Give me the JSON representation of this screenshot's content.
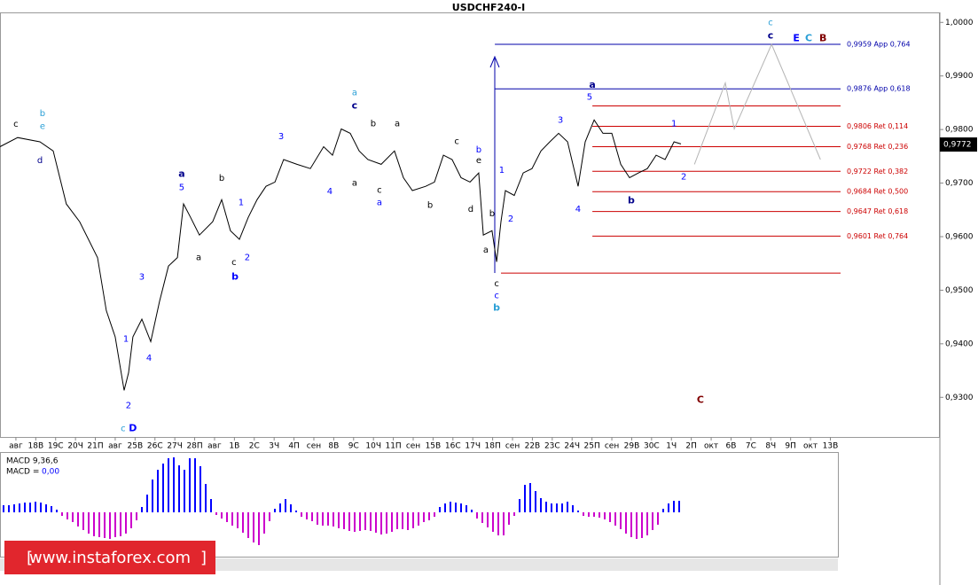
{
  "chart_data": [
    {
      "type": "line",
      "title": "USDCHF240-I",
      "categories": [
        "авг",
        "18В",
        "19С",
        "20Ч",
        "21П",
        "авг",
        "25В",
        "26С",
        "27Ч",
        "28П",
        "авг",
        "1В",
        "2С",
        "3Ч",
        "4П",
        "сен",
        "8В",
        "9С",
        "10Ч",
        "11П",
        "сен",
        "15В",
        "16С",
        "17Ч",
        "18П",
        "сен",
        "22В",
        "23С",
        "24Ч",
        "25П",
        "сен",
        "29В",
        "30С",
        "1Ч",
        "2П",
        "окт",
        "6В",
        "7С",
        "8Ч",
        "9П",
        "окт",
        "13В"
      ],
      "xlim": [
        -0.8,
        41.38
      ],
      "ylim": [
        0.9226,
        1.0017
      ],
      "yticks": [
        {
          "value": 0.93,
          "label": "0,9300"
        },
        {
          "value": 0.94,
          "label": "0,9400"
        },
        {
          "value": 0.95,
          "label": "0,9500"
        },
        {
          "value": 0.96,
          "label": "0,9600"
        },
        {
          "value": 0.97,
          "label": "0,9700"
        },
        {
          "value": 0.98,
          "label": "0,9800"
        },
        {
          "value": 0.99,
          "label": "0,9900"
        },
        {
          "value": 1.0,
          "label": "1,0000"
        }
      ],
      "last_price": {
        "value": 0.9772,
        "label": "0,9772"
      },
      "series": [
        {
          "color": "#000000",
          "x": [
            -0.8,
            0.09,
            1.21,
            1.88,
            2.54,
            3.21,
            4.11,
            4.55,
            5.0,
            5.45,
            5.67,
            5.89,
            6.34,
            6.79,
            7.23,
            7.68,
            8.13,
            8.44,
            8.79,
            9.24,
            9.91,
            10.36,
            10.8,
            11.25,
            11.7,
            12.14,
            12.59,
            13.04,
            13.48,
            14.15,
            14.82,
            15.49,
            15.94,
            16.38,
            16.83,
            17.28,
            17.72,
            18.39,
            19.06,
            19.51,
            19.96,
            20.63,
            21.07,
            21.52,
            21.96,
            22.41,
            22.86,
            23.3,
            23.53,
            23.97,
            24.2,
            24.42,
            24.64,
            25.09,
            25.54,
            25.98,
            26.43,
            26.88,
            27.32,
            27.77,
            28.3,
            28.66,
            29.11,
            29.55,
            30.0,
            30.45,
            30.89,
            31.34,
            31.79,
            32.23,
            32.68,
            33.13,
            33.48
          ],
          "values": [
            0.9768,
            0.9785,
            0.9777,
            0.976,
            0.9661,
            0.9628,
            0.9561,
            0.9462,
            0.9413,
            0.9313,
            0.9346,
            0.9413,
            0.9446,
            0.9404,
            0.9479,
            0.9545,
            0.9561,
            0.9661,
            0.9636,
            0.9603,
            0.9628,
            0.9669,
            0.9611,
            0.9595,
            0.9636,
            0.9669,
            0.9694,
            0.9702,
            0.9744,
            0.9735,
            0.9727,
            0.9768,
            0.9752,
            0.9801,
            0.9793,
            0.976,
            0.9744,
            0.9735,
            0.976,
            0.971,
            0.9686,
            0.9694,
            0.9702,
            0.9752,
            0.9744,
            0.971,
            0.9702,
            0.9719,
            0.9603,
            0.9611,
            0.9553,
            0.9628,
            0.9686,
            0.9677,
            0.9719,
            0.9727,
            0.976,
            0.9777,
            0.9793,
            0.9777,
            0.9694,
            0.9777,
            0.9818,
            0.9793,
            0.9793,
            0.9735,
            0.971,
            0.9719,
            0.9727,
            0.9752,
            0.9744,
            0.9777,
            0.9773
          ]
        },
        {
          "color": "#b4b4b4",
          "x": [
            34.16,
            35.71,
            36.16,
            38.04,
            40.5
          ],
          "values": [
            0.9735,
            0.9887,
            0.9801,
            0.9959,
            0.9744
          ]
        }
      ],
      "levels": [
        {
          "value": 0.9959,
          "label": "0,9959 App 0,764",
          "color": "#0000aa",
          "x_start": 24.11
        },
        {
          "value": 0.9876,
          "label": "0,9876 App 0,618",
          "color": "#0000aa",
          "x_start": 24.11
        },
        {
          "value": 0.9844,
          "color": "#cc0000",
          "x_start": 29.02
        },
        {
          "value": 0.9806,
          "label": "0,9806 Ret 0,114",
          "color": "#cc0000",
          "x_start": 29.02
        },
        {
          "value": 0.9768,
          "label": "0,9768 Ret 0,236",
          "color": "#cc0000",
          "x_start": 29.02
        },
        {
          "value": 0.9722,
          "label": "0,9722 Ret 0,382",
          "color": "#cc0000",
          "x_start": 29.02
        },
        {
          "value": 0.9684,
          "label": "0,9684 Ret 0,500",
          "color": "#cc0000",
          "x_start": 29.02
        },
        {
          "value": 0.9647,
          "label": "0,9647 Ret 0,618",
          "color": "#cc0000",
          "x_start": 29.02
        },
        {
          "value": 0.9601,
          "label": "0,9601 Ret 0,764",
          "color": "#cc0000",
          "x_start": 29.02
        },
        {
          "value": 0.9532,
          "color": "#cc0000",
          "x_start": 24.42
        }
      ],
      "annotations": [
        {
          "text": "c",
          "x": 0,
          "y": 0.981,
          "color": "#000000"
        },
        {
          "text": "b",
          "x": 1.34,
          "y": 0.983,
          "color": "#2a9fd6"
        },
        {
          "text": "e",
          "x": 1.34,
          "y": 0.9806,
          "color": "#2a9fd6"
        },
        {
          "text": "d",
          "x": 1.21,
          "y": 0.9742,
          "color": "#00008b"
        },
        {
          "text": "a",
          "x": 8.35,
          "y": 0.9717,
          "color": "#00008b",
          "bold": true
        },
        {
          "text": "5",
          "x": 8.35,
          "y": 0.9692,
          "color": "#0000ff"
        },
        {
          "text": "b",
          "x": 10.36,
          "y": 0.9709,
          "color": "#000000"
        },
        {
          "text": "a",
          "x": 9.2,
          "y": 0.9561,
          "color": "#000000"
        },
        {
          "text": "1",
          "x": 11.34,
          "y": 0.9664,
          "color": "#0000ff"
        },
        {
          "text": "c",
          "x": 10.98,
          "y": 0.9552,
          "color": "#000000"
        },
        {
          "text": "2",
          "x": 11.65,
          "y": 0.9561,
          "color": "#0000ff"
        },
        {
          "text": "b",
          "x": 11.03,
          "y": 0.9525,
          "color": "#0000ff",
          "bold": true
        },
        {
          "text": "3",
          "x": 6.34,
          "y": 0.9525,
          "color": "#0000ff"
        },
        {
          "text": "1",
          "x": 5.54,
          "y": 0.9409,
          "color": "#0000ff"
        },
        {
          "text": "4",
          "x": 6.7,
          "y": 0.9373,
          "color": "#0000ff"
        },
        {
          "text": "2",
          "x": 5.67,
          "y": 0.9285,
          "color": "#0000ff"
        },
        {
          "text": "c",
          "x": 5.4,
          "y": 0.9242,
          "color": "#2a9fd6"
        },
        {
          "text": "D",
          "x": 5.89,
          "y": 0.9242,
          "color": "#0000ff",
          "bold": true
        },
        {
          "text": "3",
          "x": 13.35,
          "y": 0.9787,
          "color": "#0000ff"
        },
        {
          "text": "4",
          "x": 15.8,
          "y": 0.9684,
          "color": "#0000ff"
        },
        {
          "text": "a",
          "x": 17.05,
          "y": 0.9869,
          "color": "#2a9fd6"
        },
        {
          "text": "c",
          "x": 17.05,
          "y": 0.9844,
          "color": "#00008b",
          "bold": true
        },
        {
          "text": "a",
          "x": 17.05,
          "y": 0.97,
          "color": "#000000"
        },
        {
          "text": "b",
          "x": 17.99,
          "y": 0.9811,
          "color": "#000000"
        },
        {
          "text": "a",
          "x": 19.2,
          "y": 0.9811,
          "color": "#000000"
        },
        {
          "text": "c",
          "x": 18.3,
          "y": 0.9687,
          "color": "#000000"
        },
        {
          "text": "a",
          "x": 18.3,
          "y": 0.9664,
          "color": "#0000ff"
        },
        {
          "text": "b",
          "x": 20.85,
          "y": 0.9659,
          "color": "#000000"
        },
        {
          "text": "c",
          "x": 22.19,
          "y": 0.9778,
          "color": "#000000"
        },
        {
          "text": "b",
          "x": 23.3,
          "y": 0.9762,
          "color": "#0000ff"
        },
        {
          "text": "e",
          "x": 23.3,
          "y": 0.9742,
          "color": "#000000"
        },
        {
          "text": "d",
          "x": 22.9,
          "y": 0.9651,
          "color": "#000000"
        },
        {
          "text": "1",
          "x": 24.46,
          "y": 0.9724,
          "color": "#0000ff"
        },
        {
          "text": "b",
          "x": 23.97,
          "y": 0.9643,
          "color": "#000000"
        },
        {
          "text": "2",
          "x": 24.91,
          "y": 0.9633,
          "color": "#0000ff"
        },
        {
          "text": "a",
          "x": 23.66,
          "y": 0.9575,
          "color": "#000000"
        },
        {
          "text": "c",
          "x": 24.2,
          "y": 0.9512,
          "color": "#000000"
        },
        {
          "text": "c",
          "x": 24.2,
          "y": 0.949,
          "color": "#0000ff"
        },
        {
          "text": "b",
          "x": 24.2,
          "y": 0.9467,
          "color": "#2a9fd6",
          "bold": true
        },
        {
          "text": "3",
          "x": 27.41,
          "y": 0.9818,
          "color": "#0000ff"
        },
        {
          "text": "4",
          "x": 28.3,
          "y": 0.9651,
          "color": "#0000ff"
        },
        {
          "text": "a",
          "x": 29.02,
          "y": 0.9883,
          "color": "#00008b",
          "bold": true
        },
        {
          "text": "5",
          "x": 28.88,
          "y": 0.9861,
          "color": "#0000ff"
        },
        {
          "text": "b",
          "x": 30.98,
          "y": 0.9667,
          "color": "#00008b",
          "bold": true
        },
        {
          "text": "1",
          "x": 33.13,
          "y": 0.9811,
          "color": "#0000ff"
        },
        {
          "text": "2",
          "x": 33.62,
          "y": 0.9712,
          "color": "#0000ff"
        },
        {
          "text": "c",
          "x": 37.99,
          "y": 1.0,
          "color": "#2a9fd6"
        },
        {
          "text": "c",
          "x": 37.99,
          "y": 0.9975,
          "color": "#00008b",
          "bold": true
        },
        {
          "text": "E",
          "x": 39.29,
          "y": 0.997,
          "color": "#0000ff",
          "bold": true
        },
        {
          "text": "C",
          "x": 39.91,
          "y": 0.997,
          "color": "#2a9fd6",
          "bold": true
        },
        {
          "text": "B",
          "x": 40.63,
          "y": 0.997,
          "color": "#800000",
          "bold": true
        },
        {
          "text": "C",
          "x": 34.46,
          "y": 0.9295,
          "color": "#800000",
          "bold": true
        }
      ]
    },
    {
      "type": "bar",
      "label": "MACD 9,36,6",
      "value_prefix": "MACD =",
      "value_text": "0,00",
      "ylim": [
        -0.0067,
        0.0065
      ],
      "color": "#0000ff",
      "negative_color": "#cc00cc",
      "values": [
        0.0008,
        0.0008,
        0.0009,
        0.001,
        0.0011,
        0.0011,
        0.0012,
        0.0011,
        0.0009,
        0.0007,
        0.0003,
        -0.0004,
        -0.0008,
        -0.0011,
        -0.0016,
        -0.002,
        -0.0024,
        -0.0027,
        -0.0028,
        -0.0029,
        -0.003,
        -0.0028,
        -0.0027,
        -0.0024,
        -0.0018,
        -0.0009,
        0.0006,
        0.002,
        0.0037,
        0.0048,
        0.0055,
        0.0061,
        0.0062,
        0.0053,
        0.0048,
        0.0061,
        0.0061,
        0.0052,
        0.0032,
        0.0015,
        -0.0003,
        -0.0007,
        -0.0011,
        -0.0015,
        -0.0018,
        -0.0023,
        -0.0029,
        -0.0034,
        -0.0037,
        -0.0024,
        -0.001,
        0.0004,
        0.001,
        0.0015,
        0.0009,
        0.0002,
        -0.0005,
        -0.0008,
        -0.001,
        -0.0014,
        -0.0015,
        -0.0015,
        -0.0016,
        -0.0018,
        -0.0019,
        -0.0021,
        -0.0022,
        -0.0021,
        -0.002,
        -0.0021,
        -0.0023,
        -0.0025,
        -0.0024,
        -0.0022,
        -0.0019,
        -0.0019,
        -0.002,
        -0.0018,
        -0.0015,
        -0.0011,
        -0.0009,
        -0.0005,
        0.0006,
        0.001,
        0.0012,
        0.0011,
        0.001,
        0.0008,
        0.0003,
        -0.0007,
        -0.0012,
        -0.0017,
        -0.0022,
        -0.0026,
        -0.0026,
        -0.0014,
        -0.0004,
        0.0015,
        0.0031,
        0.0033,
        0.0024,
        0.0016,
        0.0012,
        0.001,
        0.001,
        0.001,
        0.0012,
        0.0008,
        0.0002,
        -0.0004,
        -0.0005,
        -0.0005,
        -0.0006,
        -0.0008,
        -0.0011,
        -0.0015,
        -0.0019,
        -0.0024,
        -0.0028,
        -0.003,
        -0.0029,
        -0.0026,
        -0.002,
        -0.0014,
        0.0004,
        0.001,
        0.0013,
        0.0013
      ]
    }
  ],
  "watermark": {
    "open": "[",
    "site": "www.instaforex.com",
    "close": "]"
  }
}
